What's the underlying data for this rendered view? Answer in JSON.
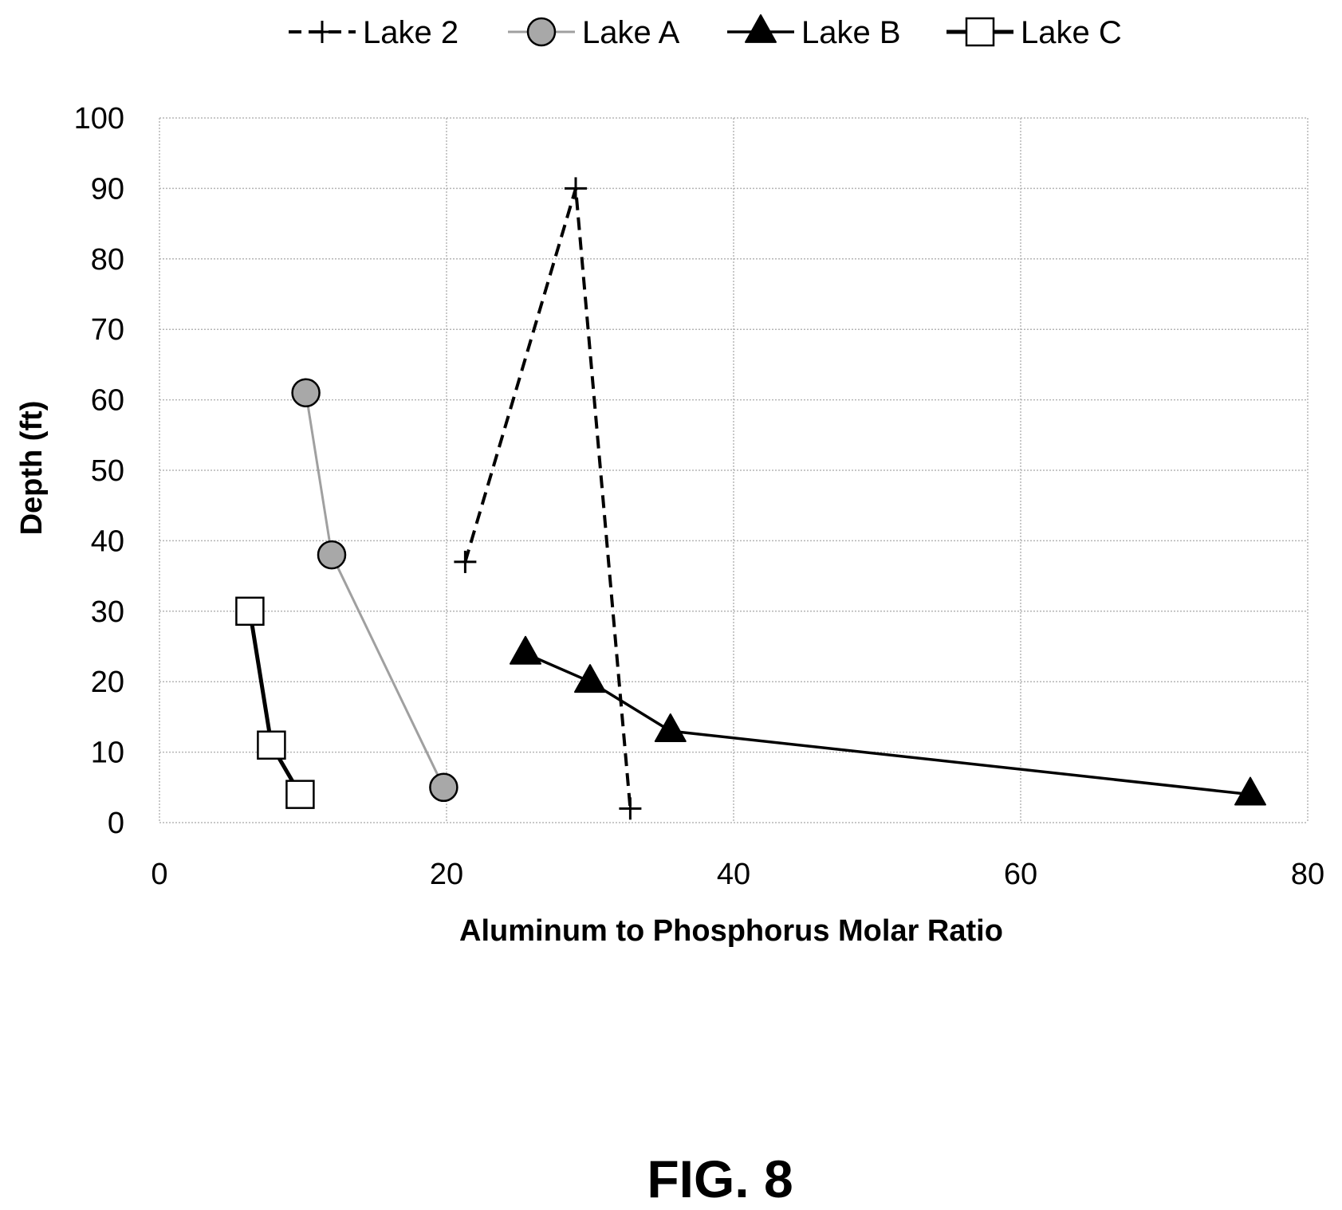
{
  "figure_label": "FIG. 8",
  "chart_data": {
    "type": "scatter",
    "title": "",
    "xlabel": "Aluminum to Phosphorus Molar Ratio",
    "ylabel": "Depth (ft)",
    "xlim": [
      0,
      80
    ],
    "ylim": [
      0,
      100
    ],
    "x_ticks": [
      0,
      20,
      40,
      60,
      80
    ],
    "y_ticks": [
      0,
      10,
      20,
      30,
      40,
      50,
      60,
      70,
      80,
      90,
      100
    ],
    "grid": true,
    "legend_position": "top",
    "series": [
      {
        "name": "Lake 2",
        "marker": "plus",
        "line_style": "dashed",
        "color": "#000000",
        "points": [
          {
            "x": 21.3,
            "y": 37
          },
          {
            "x": 29.0,
            "y": 90
          },
          {
            "x": 32.8,
            "y": 2
          }
        ]
      },
      {
        "name": "Lake A",
        "marker": "circle",
        "line_style": "solid-thin",
        "color": "#a0a0a0",
        "points": [
          {
            "x": 10.2,
            "y": 61
          },
          {
            "x": 12.0,
            "y": 38
          },
          {
            "x": 19.8,
            "y": 5
          }
        ]
      },
      {
        "name": "Lake B",
        "marker": "triangle",
        "line_style": "solid",
        "color": "#000000",
        "points": [
          {
            "x": 25.5,
            "y": 24
          },
          {
            "x": 30.0,
            "y": 20
          },
          {
            "x": 35.6,
            "y": 13
          },
          {
            "x": 76.0,
            "y": 4
          }
        ]
      },
      {
        "name": "Lake C",
        "marker": "square",
        "line_style": "solid-thick",
        "color": "#000000",
        "points": [
          {
            "x": 6.3,
            "y": 30
          },
          {
            "x": 7.8,
            "y": 11
          },
          {
            "x": 9.8,
            "y": 4
          }
        ]
      }
    ]
  }
}
